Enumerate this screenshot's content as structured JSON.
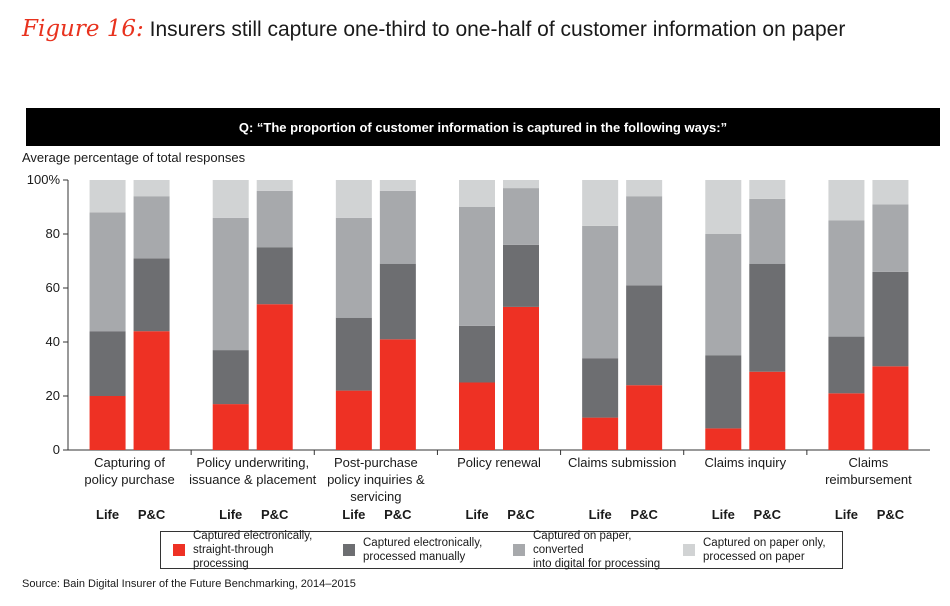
{
  "figure": {
    "label": "Figure 16:",
    "title": "Insurers still capture one-third to one-half of customer information on paper"
  },
  "question": "Q: “The proportion of customer information is captured in the following ways:”",
  "source": "Source: Bain Digital Insurer of the Future Benchmarking, 2014–2015",
  "colors": {
    "straight_through": "#ee3124",
    "processed_manually": "#6d6e71",
    "converted": "#a7a9ac",
    "paper_only": "#d1d3d4"
  },
  "legend": [
    {
      "line1": "Captured electronically,",
      "line2": "straight-through processing",
      "color": "#ee3124"
    },
    {
      "line1": "Captured electronically,",
      "line2": "processed manually",
      "color": "#6d6e71"
    },
    {
      "line1": "Captured on paper, converted",
      "line2": "into digital for processing",
      "color": "#a7a9ac"
    },
    {
      "line1": "Captured on paper only,",
      "line2": "processed on paper",
      "color": "#d1d3d4"
    }
  ],
  "chart_data": {
    "type": "bar",
    "stacked": true,
    "ylabel": "Average percentage of total responses",
    "ylim": [
      0,
      100
    ],
    "yticks": [
      "0",
      "20",
      "40",
      "60",
      "80",
      "100%"
    ],
    "groups": [
      {
        "label": [
          "Capturing of",
          "policy purchase"
        ],
        "bars": [
          {
            "name": "Life",
            "values": [
              20,
              24,
              44,
              12
            ]
          },
          {
            "name": "P&C",
            "values": [
              44,
              27,
              23,
              6
            ]
          }
        ]
      },
      {
        "label": [
          "Policy underwriting,",
          "issuance & placement"
        ],
        "bars": [
          {
            "name": "Life",
            "values": [
              17,
              20,
              49,
              14
            ]
          },
          {
            "name": "P&C",
            "values": [
              54,
              21,
              21,
              4
            ]
          }
        ]
      },
      {
        "label": [
          "Post-purchase",
          "policy inquiries &",
          "servicing"
        ],
        "bars": [
          {
            "name": "Life",
            "values": [
              22,
              27,
              37,
              14
            ]
          },
          {
            "name": "P&C",
            "values": [
              41,
              28,
              27,
              4
            ]
          }
        ]
      },
      {
        "label": [
          "Policy renewal"
        ],
        "bars": [
          {
            "name": "Life",
            "values": [
              25,
              21,
              44,
              10
            ]
          },
          {
            "name": "P&C",
            "values": [
              53,
              23,
              21,
              3
            ]
          }
        ]
      },
      {
        "label": [
          "Claims submission"
        ],
        "bars": [
          {
            "name": "Life",
            "values": [
              12,
              22,
              49,
              17
            ]
          },
          {
            "name": "P&C",
            "values": [
              24,
              37,
              33,
              6
            ]
          }
        ]
      },
      {
        "label": [
          "Claims inquiry"
        ],
        "bars": [
          {
            "name": "Life",
            "values": [
              8,
              27,
              45,
              20
            ]
          },
          {
            "name": "P&C",
            "values": [
              29,
              40,
              24,
              7
            ]
          }
        ]
      },
      {
        "label": [
          "Claims",
          "reimbursement"
        ],
        "bars": [
          {
            "name": "Life",
            "values": [
              21,
              21,
              43,
              15
            ]
          },
          {
            "name": "P&C",
            "values": [
              31,
              35,
              25,
              9
            ]
          }
        ]
      }
    ]
  }
}
